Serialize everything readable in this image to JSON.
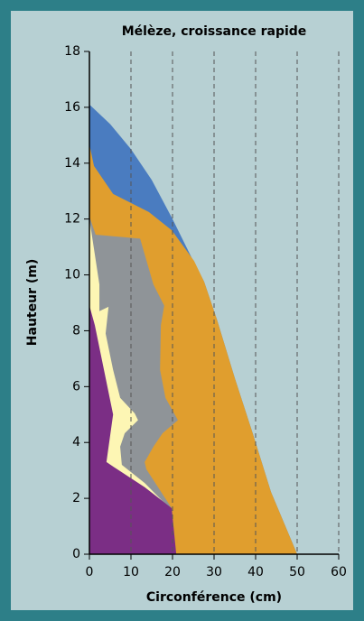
{
  "chart_data": {
    "type": "area",
    "title": "Mélèze, croissance rapide",
    "xlabel": "Circonférence (cm)",
    "ylabel": "Hauteur (m)",
    "xlim": [
      0,
      60
    ],
    "xticks": [
      0,
      10,
      20,
      30,
      40,
      50,
      60
    ],
    "ylim": [
      0,
      18
    ],
    "yticks": [
      0,
      2,
      4,
      6,
      8,
      10,
      12,
      14,
      16,
      18
    ],
    "grid": true,
    "series": [
      {
        "color": "#4a7cc0",
        "x": [
          0,
          5,
          10,
          15,
          20,
          25,
          27.6,
          30.7,
          35,
          39.3,
          43.7,
          50
        ],
        "values": [
          16.1,
          15.4,
          14.5,
          13.4,
          12.0,
          10.5,
          9.76,
          8.4,
          6.3,
          4.33,
          2.23,
          0
        ]
      },
      {
        "color": "#e09e2e",
        "x": [
          0,
          1.1,
          5.7,
          14.3,
          19.8,
          25.2,
          27.6,
          30.7,
          35,
          39.3,
          43.7,
          50
        ],
        "values": [
          14.67,
          13.9,
          12.9,
          12.25,
          11.6,
          10.5,
          9.76,
          8.4,
          6.3,
          4.33,
          2.23,
          0
        ]
      },
      {
        "color": "#8f9498",
        "x": [
          0,
          1.5,
          12.2,
          15.4,
          18,
          17.2,
          17,
          18.3,
          21.3,
          17.6,
          15.4,
          13.3,
          13.7,
          19.8
        ],
        "values": [
          12.09,
          11.44,
          11.3,
          9.66,
          8.9,
          8.2,
          6.6,
          5.6,
          4.8,
          4.33,
          3.85,
          3.3,
          3.04,
          1.65
        ]
      },
      {
        "color": "#fdf6b4",
        "x": [
          0,
          2.4,
          2.4,
          4.6,
          3.9,
          5.7,
          7.4,
          10.9,
          11.7,
          8.5,
          7.4,
          7.8,
          13.3,
          19.3
        ],
        "values": [
          12.0,
          9.66,
          8.7,
          8.86,
          7.9,
          6.6,
          5.6,
          5.04,
          4.8,
          4.33,
          3.85,
          3.2,
          2.55,
          1.65
        ]
      },
      {
        "color": "#7b2e85",
        "x": [
          0,
          1.3,
          3.5,
          5.7,
          4.1,
          6.7,
          13.3,
          19.8,
          20.9
        ],
        "values": [
          8.9,
          8.2,
          6.6,
          5.0,
          3.3,
          3.04,
          2.4,
          1.65,
          0
        ]
      }
    ]
  }
}
